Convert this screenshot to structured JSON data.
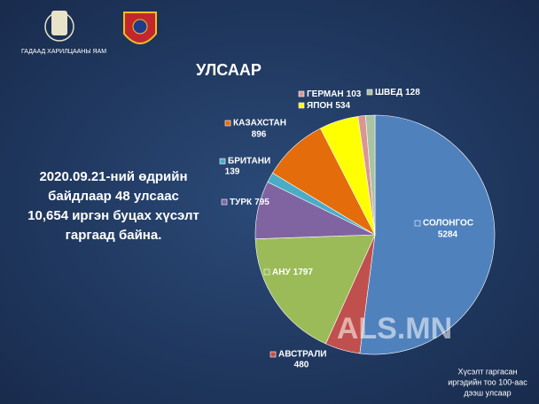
{
  "header": {
    "ministry": "ГАДААД ХАРИЛЦААНЫ ЯАМ"
  },
  "chart_data": {
    "type": "pie",
    "title": "УЛСААР",
    "categories": [
      "СОЛОНГОС",
      "АВСТРАЛИ",
      "АНУ",
      "ТУРК",
      "БРИТАНИ",
      "КАЗАХСТАН",
      "ЯПОН",
      "ГЕРМАН",
      "ШВЕД"
    ],
    "values": [
      5284,
      480,
      1797,
      795,
      139,
      896,
      534,
      103,
      128
    ],
    "colors": [
      "#4f81bd",
      "#c0504d",
      "#9bbb59",
      "#8064a2",
      "#4bacc6",
      "#e46c0a",
      "#ffff00",
      "#d99694",
      "#a9c4a0"
    ],
    "annotation": [
      "2020.09.21-ний өдрийн",
      "байдлаар 48 улсаас",
      "10,654 иргэн буцах хүсэлт",
      "гаргаад байна."
    ],
    "note": [
      "Хүсэлт гаргасан",
      "иргэдийн тоо 100-аас",
      "дээш улсаар"
    ],
    "watermark": "ALS.MN"
  }
}
